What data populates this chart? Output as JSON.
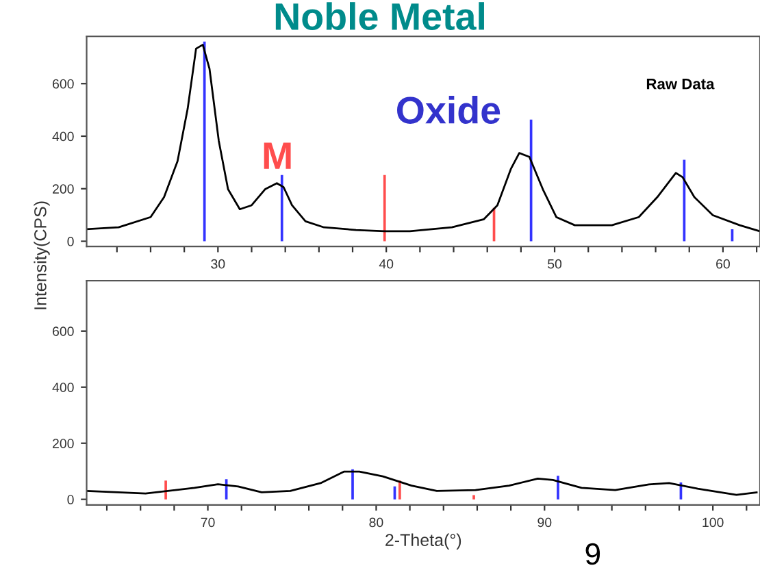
{
  "chart_data": [
    {
      "type": "line",
      "title": "Noble Metal",
      "ylabel": "Intensity(CPS)",
      "xlim": [
        22.2,
        62.2
      ],
      "ylim": [
        -20,
        780
      ],
      "yticks": [
        0,
        200,
        400,
        600
      ],
      "xticks": [
        {
          "value": 24,
          "label": null
        },
        {
          "value": 26,
          "label": null
        },
        {
          "value": 28,
          "label": null
        },
        30,
        {
          "value": 32,
          "label": null
        },
        {
          "value": 34,
          "label": null
        },
        {
          "value": 36,
          "label": null
        },
        {
          "value": 38,
          "label": null
        },
        40,
        {
          "value": 42,
          "label": null
        },
        {
          "value": 44,
          "label": null
        },
        {
          "value": 46,
          "label": null
        },
        {
          "value": 48,
          "label": null
        },
        50,
        {
          "value": 52,
          "label": null
        },
        {
          "value": 54,
          "label": null
        },
        {
          "value": 56,
          "label": null
        },
        {
          "value": 58,
          "label": null
        },
        60,
        {
          "value": 62,
          "label": null
        }
      ],
      "grid": false,
      "legend": false,
      "annotations": [
        "Oxide",
        "M",
        "Raw Data"
      ],
      "series": [
        {
          "color": "#000000",
          "x": [
            22.2,
            24.1,
            26.0,
            26.8,
            27.6,
            28.2,
            28.7,
            29.1,
            29.5,
            30.05,
            30.6,
            31.3,
            32.0,
            32.8,
            33.5,
            33.9,
            34.4,
            35.2,
            36.3,
            38.2,
            39.9,
            41.4,
            43.9,
            45.8,
            46.6,
            47.4,
            47.9,
            48.5,
            49.3,
            50.1,
            51.2,
            53.4,
            55.0,
            56.1,
            57.2,
            57.6,
            58.3,
            59.4,
            61.0,
            62.2
          ],
          "values": [
            46,
            53,
            92,
            168,
            305,
            504,
            733,
            748,
            656,
            382,
            198,
            122,
            137,
            198,
            221,
            206,
            137,
            76,
            53,
            43,
            38,
            38,
            53,
            84,
            137,
            275,
            336,
            321,
            198,
            92,
            61,
            61,
            92,
            168,
            260,
            244,
            168,
            99,
            61,
            38
          ]
        },
        {
          "type": "bar",
          "color": "#3333ff",
          "x": [
            29.2,
            33.8,
            48.6,
            57.7,
            60.55
          ],
          "values": [
            760,
            252,
            463,
            310,
            46
          ]
        },
        {
          "type": "bar",
          "color": "#ff4d4d",
          "x": [
            39.9,
            46.4
          ],
          "values": [
            252,
            127
          ]
        }
      ]
    },
    {
      "type": "line",
      "xlabel": "2-Theta(°)",
      "xlim": [
        62.8,
        102.8
      ],
      "ylim": [
        -20,
        780
      ],
      "yticks": [
        0,
        200,
        400,
        600
      ],
      "xticks": [
        {
          "value": 64,
          "label": null
        },
        {
          "value": 66,
          "label": null
        },
        {
          "value": 68,
          "label": null
        },
        70,
        {
          "value": 72,
          "label": null
        },
        {
          "value": 74,
          "label": null
        },
        {
          "value": 76,
          "label": null
        },
        {
          "value": 78,
          "label": null
        },
        80,
        {
          "value": 82,
          "label": null
        },
        {
          "value": 84,
          "label": null
        },
        {
          "value": 86,
          "label": null
        },
        {
          "value": 88,
          "label": null
        },
        90,
        {
          "value": 92,
          "label": null
        },
        {
          "value": 94,
          "label": null
        },
        {
          "value": 96,
          "label": null
        },
        {
          "value": 98,
          "label": null
        },
        100,
        {
          "value": 102,
          "label": null
        }
      ],
      "grid": false,
      "legend": false,
      "annotations": [
        "9"
      ],
      "series": [
        {
          "color": "#000000",
          "x": [
            62.8,
            66.3,
            69.2,
            70.6,
            71.8,
            73.2,
            74.9,
            76.7,
            78.1,
            79.0,
            80.4,
            82.1,
            83.6,
            85.9,
            87.9,
            89.6,
            90.5,
            92.2,
            94.2,
            96.2,
            97.4,
            99.1,
            101.4,
            102.6
          ],
          "values": [
            30,
            21,
            41,
            54,
            46,
            25,
            30,
            58,
            99,
            99,
            82,
            49,
            30,
            33,
            49,
            74,
            69,
            41,
            33,
            53,
            58,
            38,
            16,
            25
          ]
        },
        {
          "type": "bar",
          "color": "#3333ff",
          "x": [
            71.1,
            78.6,
            81.1,
            90.8,
            98.1
          ],
          "values": [
            72,
            107,
            46,
            84,
            60
          ]
        },
        {
          "type": "bar",
          "color": "#ff4d4d",
          "x": [
            67.5,
            81.4,
            85.8
          ],
          "values": [
            67,
            67,
            15
          ]
        }
      ]
    }
  ]
}
